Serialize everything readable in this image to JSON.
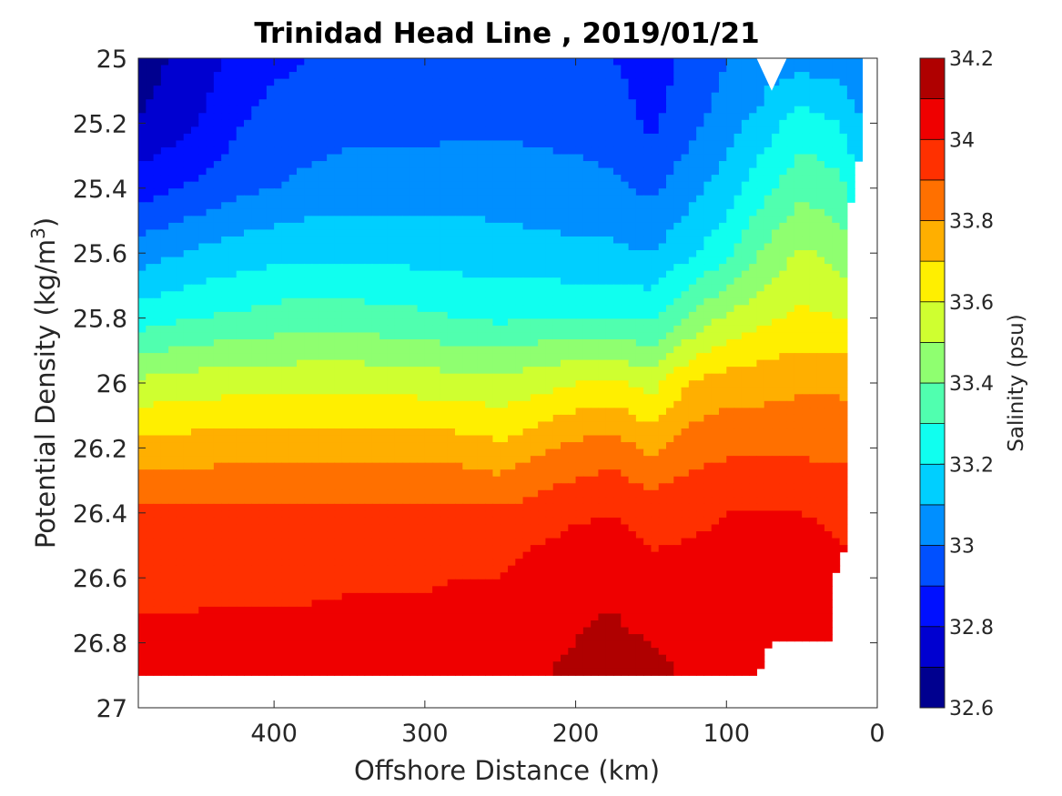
{
  "chart_data": {
    "type": "contour",
    "title": "Trinidad Head Line , 2019/01/21",
    "xlabel": "Offshore Distance (km)",
    "ylabel_main": "Potential Density (kg/m",
    "ylabel_sup": "3",
    "ylabel_close": ")",
    "colorbar_label": "Salinity (psu)",
    "xlim": [
      490,
      0
    ],
    "x_direction": "reversed",
    "ylim": [
      25,
      27
    ],
    "y_direction": "reversed",
    "x_ticks": [
      400,
      300,
      200,
      100,
      0
    ],
    "x_tick_labels": [
      "400",
      "300",
      "200",
      "100",
      "0"
    ],
    "y_ticks": [
      25,
      25.2,
      25.4,
      25.6,
      25.8,
      26,
      26.2,
      26.4,
      26.6,
      26.8,
      27
    ],
    "y_tick_labels": [
      "25",
      "25.2",
      "25.4",
      "25.6",
      "25.8",
      "26",
      "26.2",
      "26.4",
      "26.6",
      "26.8",
      "27"
    ],
    "colorbar_range": [
      32.6,
      34.2
    ],
    "colorbar_ticks": [
      32.6,
      32.8,
      33,
      33.2,
      33.4,
      33.6,
      33.8,
      34,
      34.2
    ],
    "colorbar_tick_labels": [
      "32.6",
      "32.8",
      "33",
      "33.2",
      "33.4",
      "33.6",
      "33.8",
      "34",
      "34.2"
    ],
    "levels": [
      32.6,
      32.7,
      32.8,
      32.9,
      33.0,
      33.1,
      33.2,
      33.3,
      33.4,
      33.5,
      33.6,
      33.7,
      33.8,
      33.9,
      34.0,
      34.1,
      34.2
    ],
    "level_colors": [
      "#00008f",
      "#0000d0",
      "#0010ff",
      "#0050ff",
      "#008fff",
      "#00cfff",
      "#10ffef",
      "#50ffaf",
      "#8fff70",
      "#cfff30",
      "#ffef00",
      "#ffaf00",
      "#ff7000",
      "#ff3000",
      "#ef0000",
      "#af0000"
    ],
    "data_extent": {
      "x_max_km": 490,
      "y_bottom": 26.9,
      "x_right_edge": [
        [
          10,
          25.0
        ],
        [
          10,
          25.1
        ],
        [
          12,
          25.3
        ],
        [
          15,
          25.4
        ],
        [
          20,
          25.48
        ],
        [
          20,
          26.5
        ],
        [
          30,
          26.6
        ],
        [
          30,
          26.8
        ],
        [
          70,
          26.8
        ],
        [
          80,
          26.9
        ]
      ],
      "missing_notch": [
        [
          80,
          25.0
        ],
        [
          70,
          25.1
        ],
        [
          60,
          25.0
        ]
      ]
    },
    "section_profiles": {
      "x": [
        490,
        450,
        420,
        400,
        375,
        350,
        320,
        300,
        275,
        250,
        225,
        200,
        175,
        150,
        125,
        100,
        75,
        50,
        25,
        10
      ],
      "salinity_at_density": [
        {
          "sigma": 25.0,
          "values": [
            32.65,
            32.75,
            32.85,
            32.88,
            32.9,
            32.92,
            32.92,
            32.92,
            32.93,
            32.93,
            32.92,
            32.92,
            32.9,
            32.85,
            32.92,
            33.0,
            null,
            33.05,
            33.05,
            33.0
          ]
        },
        {
          "sigma": 25.2,
          "values": [
            32.7,
            32.8,
            32.9,
            32.93,
            32.95,
            32.97,
            32.97,
            32.97,
            32.98,
            32.98,
            32.97,
            32.96,
            32.95,
            32.88,
            32.97,
            33.05,
            33.15,
            33.25,
            33.2,
            33.1
          ]
        },
        {
          "sigma": 25.4,
          "values": [
            32.85,
            32.92,
            32.98,
            33.0,
            33.03,
            33.05,
            33.05,
            33.05,
            33.06,
            33.06,
            33.05,
            33.04,
            33.02,
            32.98,
            33.06,
            33.15,
            33.27,
            33.37,
            33.33,
            33.2
          ]
        },
        {
          "sigma": 25.6,
          "values": [
            33.05,
            33.12,
            33.15,
            33.17,
            33.18,
            33.18,
            33.17,
            33.16,
            33.15,
            33.14,
            33.13,
            33.12,
            33.12,
            33.1,
            33.18,
            33.27,
            33.42,
            33.52,
            33.46,
            33.35
          ]
        },
        {
          "sigma": 25.8,
          "values": [
            33.25,
            33.3,
            33.32,
            33.34,
            33.35,
            33.35,
            33.33,
            33.32,
            33.3,
            33.28,
            33.3,
            33.3,
            33.3,
            33.28,
            33.4,
            33.52,
            33.58,
            33.62,
            33.6,
            33.55
          ]
        },
        {
          "sigma": 26.0,
          "values": [
            33.52,
            33.55,
            33.56,
            33.56,
            33.57,
            33.57,
            33.56,
            33.55,
            33.54,
            33.53,
            33.56,
            33.6,
            33.62,
            33.56,
            33.7,
            33.75,
            33.76,
            33.78,
            33.78,
            33.75
          ]
        },
        {
          "sigma": 26.2,
          "values": [
            33.75,
            33.75,
            33.76,
            33.76,
            33.76,
            33.76,
            33.76,
            33.76,
            33.75,
            33.72,
            33.78,
            33.83,
            33.85,
            33.78,
            33.85,
            33.88,
            33.88,
            33.88,
            33.88,
            33.86
          ]
        },
        {
          "sigma": 26.4,
          "values": [
            33.92,
            33.92,
            33.92,
            33.92,
            33.92,
            33.93,
            33.93,
            33.93,
            33.93,
            33.92,
            33.95,
            33.98,
            34.0,
            33.97,
            33.98,
            34.0,
            34.0,
            34.0,
            33.98,
            33.95
          ]
        },
        {
          "sigma": 26.6,
          "values": [
            33.98,
            33.98,
            33.98,
            33.98,
            33.98,
            33.99,
            33.99,
            33.99,
            34.0,
            34.0,
            34.05,
            34.08,
            34.08,
            34.02,
            34.03,
            34.03,
            34.05,
            34.05,
            34.03,
            null
          ]
        },
        {
          "sigma": 26.8,
          "values": [
            34.02,
            34.02,
            34.03,
            34.03,
            34.03,
            34.03,
            34.03,
            34.04,
            34.04,
            34.06,
            34.08,
            34.1,
            34.12,
            34.1,
            34.08,
            34.06,
            34.05,
            34.05,
            34.05,
            null
          ]
        },
        {
          "sigma": 26.88,
          "values": [
            34.05,
            34.05,
            34.05,
            34.05,
            34.05,
            34.06,
            34.06,
            34.07,
            34.07,
            34.08,
            34.09,
            34.12,
            34.14,
            34.12,
            34.09,
            34.07,
            null,
            null,
            null,
            null
          ]
        }
      ]
    },
    "grid": false,
    "colorbar_position": "right"
  }
}
